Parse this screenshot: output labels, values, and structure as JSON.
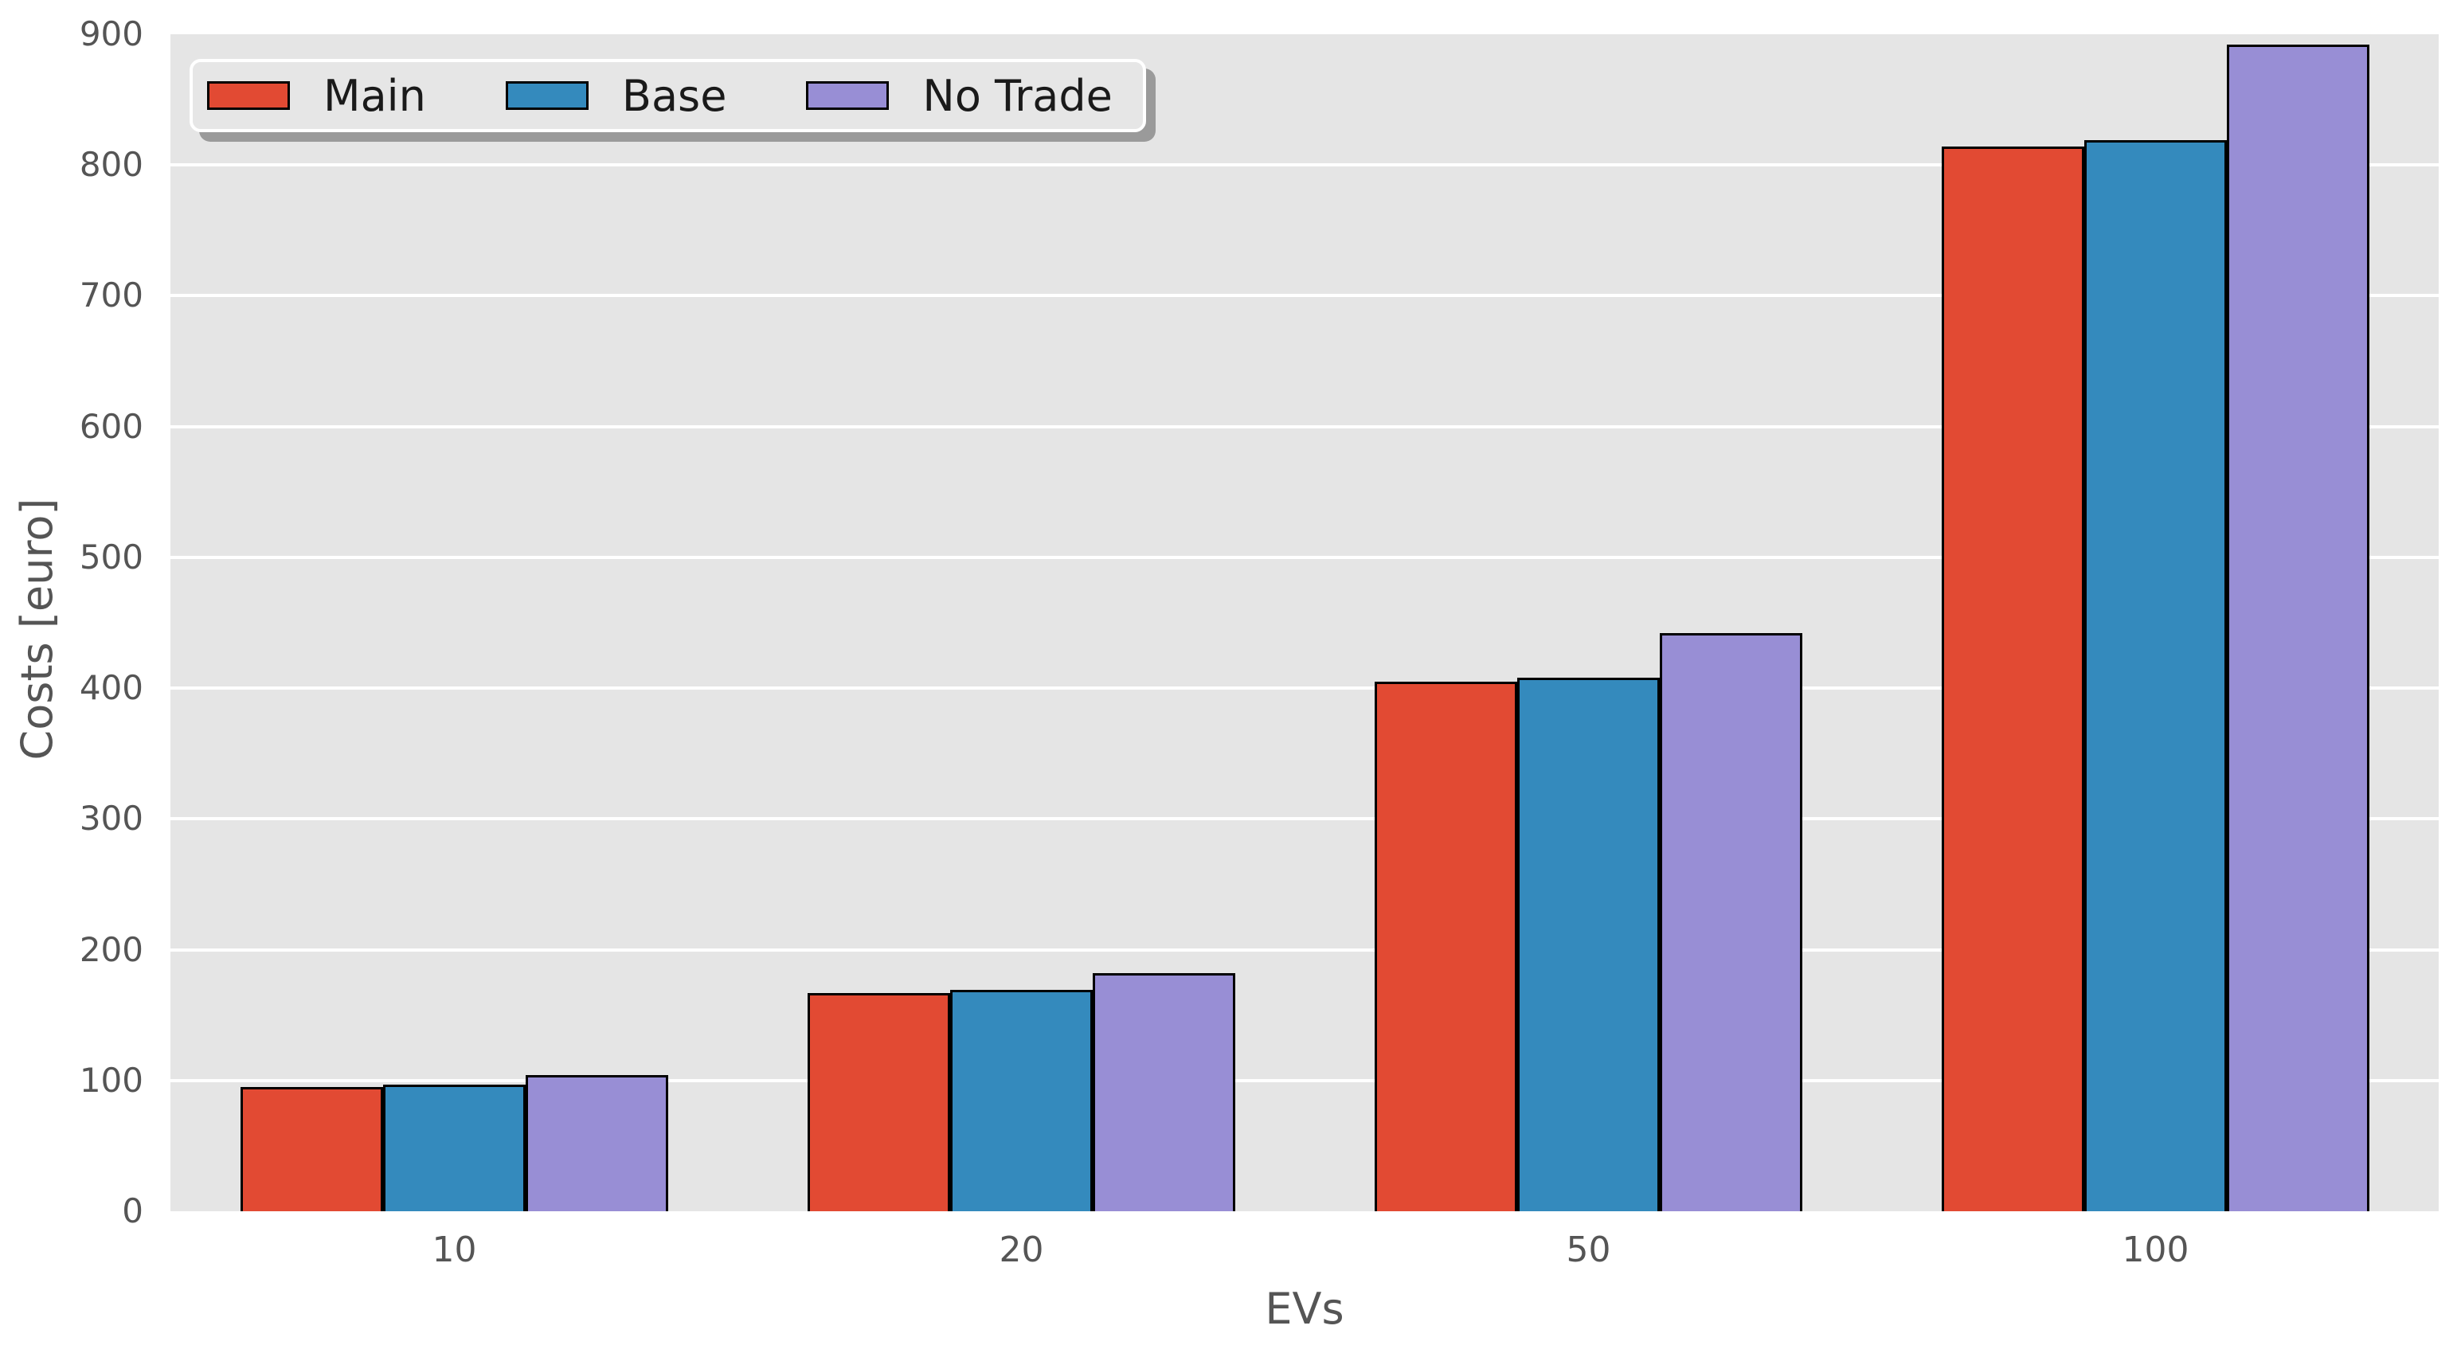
{
  "figure": {
    "xlabel": "EVs",
    "ylabel": "Costs [euro]"
  },
  "chart_data": {
    "type": "bar",
    "title": "",
    "xlabel": "EVs",
    "ylabel": "Costs [euro]",
    "categories": [
      "10",
      "20",
      "50",
      "100"
    ],
    "series": [
      {
        "name": "Main",
        "color": "#E24A33",
        "values": [
          95,
          167,
          405,
          814
        ]
      },
      {
        "name": "Base",
        "color": "#348ABD",
        "values": [
          97,
          169,
          408,
          819
        ]
      },
      {
        "name": "No Trade",
        "color": "#988ED5",
        "values": [
          104,
          182,
          442,
          892
        ]
      }
    ],
    "ylim": [
      0,
      900
    ],
    "ytick_step": 100,
    "yticks": [
      0,
      100,
      200,
      300,
      400,
      500,
      600,
      700,
      800,
      900
    ],
    "grid": true,
    "legend_position": "upper left",
    "style": {
      "plot_background": "#E5E5E5",
      "grid_color": "#FFFFFF",
      "tick_label_color": "#555555",
      "axis_label_color": "#555555",
      "legend_text_color": "#1A1A1A",
      "bar_edge_color": "#000000",
      "legend_background": "#E6E6E6",
      "legend_shadow_color": "#9A9A9A"
    }
  }
}
